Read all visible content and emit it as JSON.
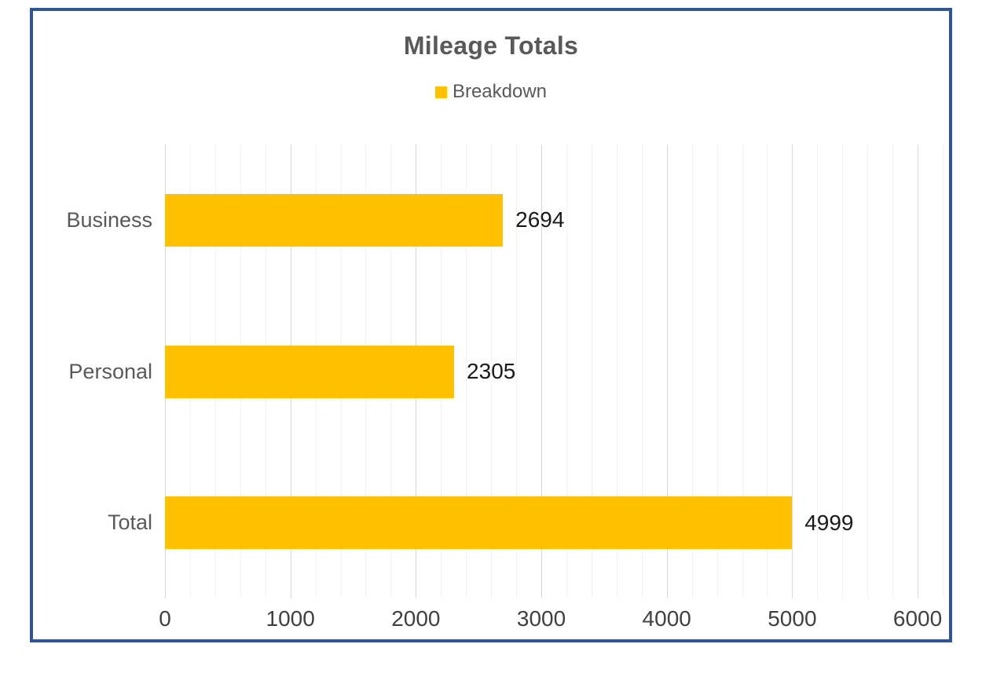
{
  "chart": {
    "title": "Mileage Totals",
    "legend": {
      "label": "Breakdown",
      "swatch_color": "#FFC000"
    }
  },
  "chart_data": {
    "type": "bar",
    "orientation": "horizontal",
    "title": "Mileage Totals",
    "xlabel": "",
    "ylabel": "",
    "categories": [
      "Business",
      "Personal",
      "Total"
    ],
    "series": [
      {
        "name": "Breakdown",
        "values": [
          2694,
          2305,
          4999
        ],
        "color": "#FFC000"
      }
    ],
    "data_labels": [
      "2694",
      "2305",
      "4999"
    ],
    "xlim": [
      0,
      6200
    ],
    "x_ticks": [
      0,
      1000,
      2000,
      3000,
      4000,
      5000,
      6000
    ],
    "major_tick_interval": 1000,
    "minor_tick_interval": 200,
    "grid": true,
    "legend_position": "top",
    "colors": {
      "bar": "#FFC000",
      "frame_border": "#2E5596",
      "title": "#595959",
      "axis_text": "#595959",
      "tick_text": "#404040",
      "data_label": "#1a1a1a",
      "major_grid": "#D9D9D9",
      "minor_grid": "#F2F2F2"
    }
  }
}
